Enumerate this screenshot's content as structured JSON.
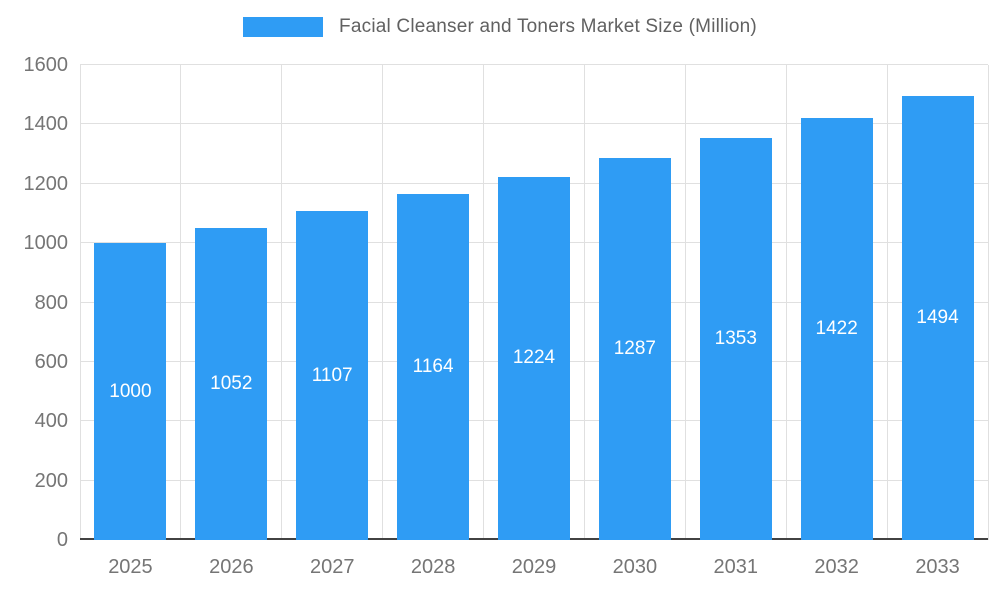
{
  "legend": {
    "label": "Facial Cleanser and Toners Market Size (Million)"
  },
  "colors": {
    "bar": "#2F9CF4",
    "bar_label": "#ffffff",
    "axis_text": "#757575",
    "title_text": "#616161",
    "gridline": "#e0e0e0",
    "axis_line": "#424242"
  },
  "chart_data": {
    "type": "bar",
    "title": "Facial Cleanser and Toners Market Size (Million)",
    "categories": [
      "2025",
      "2026",
      "2027",
      "2028",
      "2029",
      "2030",
      "2031",
      "2032",
      "2033"
    ],
    "values": [
      1000,
      1052,
      1107,
      1164,
      1224,
      1287,
      1353,
      1422,
      1494
    ],
    "xlabel": "",
    "ylabel": "",
    "ylim": [
      0,
      1600
    ],
    "ytick_step": 200,
    "ytick_labels": [
      "0",
      "200",
      "400",
      "600",
      "800",
      "1000",
      "1200",
      "1400",
      "1600"
    ],
    "grid": true,
    "legend_position": "top",
    "value_labels": "inside-center"
  }
}
